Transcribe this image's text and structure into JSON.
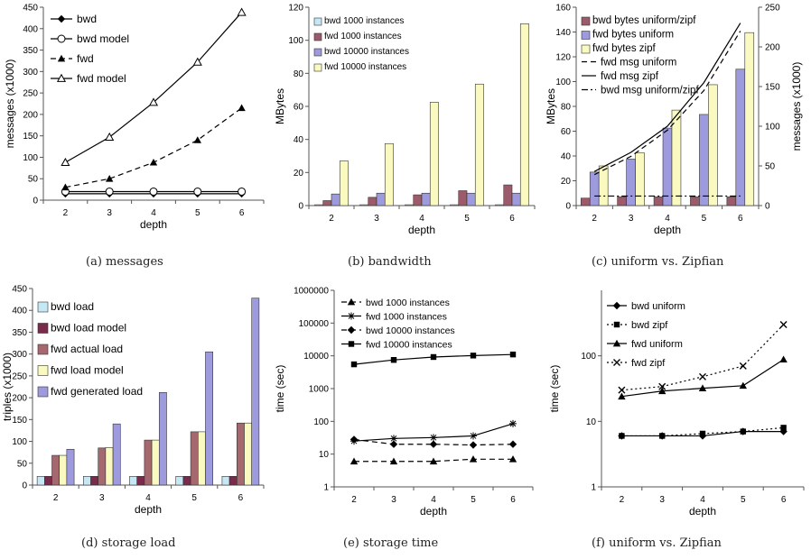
{
  "chart_data": [
    {
      "id": "a",
      "type": "line",
      "caption": "(a)  messages",
      "xlabel": "depth",
      "ylabel": "messages (x1000)",
      "x": [
        2,
        3,
        4,
        5,
        6
      ],
      "ylim": [
        0,
        450
      ],
      "yticks": [
        0,
        50,
        100,
        150,
        200,
        250,
        300,
        350,
        400,
        450
      ],
      "legend_position": "top-left",
      "series": [
        {
          "name": "bwd",
          "values": [
            15,
            15,
            15,
            15,
            15
          ],
          "marker": "diamond",
          "dash": "solid"
        },
        {
          "name": "bwd model",
          "values": [
            20,
            20,
            20,
            20,
            20
          ],
          "marker": "circle-open",
          "dash": "solid"
        },
        {
          "name": "fwd",
          "values": [
            30,
            50,
            88,
            140,
            215
          ],
          "marker": "triangle",
          "dash": "dashed"
        },
        {
          "name": "fwd model",
          "values": [
            88,
            147,
            228,
            322,
            438
          ],
          "marker": "triangle-open",
          "dash": "solid"
        }
      ]
    },
    {
      "id": "b",
      "type": "bar",
      "caption": "(b)  bandwidth",
      "xlabel": "depth",
      "ylabel": "MBytes",
      "categories": [
        "2",
        "3",
        "4",
        "5",
        "6"
      ],
      "ylim": [
        0,
        120
      ],
      "yticks": [
        0,
        20,
        40,
        60,
        80,
        100,
        120
      ],
      "legend_position": "top-left",
      "series": [
        {
          "name": "bwd 1000 instances",
          "values": [
            0.5,
            0.5,
            0.5,
            0.5,
            0.5
          ],
          "color": "#c6e8f5"
        },
        {
          "name": "fwd 1000 instances",
          "values": [
            3,
            5,
            6.5,
            9,
            12.5
          ],
          "color": "#9b5b6a"
        },
        {
          "name": "bwd 10000 instances",
          "values": [
            7,
            7.5,
            7.5,
            7.5,
            7.5
          ],
          "color": "#9d9ade"
        },
        {
          "name": "fwd 10000 instances",
          "values": [
            27,
            37.5,
            62.5,
            73.5,
            110
          ],
          "color": "#fafac0"
        }
      ]
    },
    {
      "id": "c",
      "type": "bar",
      "caption": "(c)  uniform vs. Zipfian",
      "xlabel": "depth",
      "ylabel": "MBytes",
      "y2label": "messages (x1000)",
      "categories": [
        "2",
        "3",
        "4",
        "5",
        "6"
      ],
      "ylim": [
        0,
        160
      ],
      "yticks": [
        0,
        20,
        40,
        60,
        80,
        100,
        120,
        140,
        160
      ],
      "y2lim": [
        0,
        250
      ],
      "y2ticks": [
        0,
        50,
        100,
        150,
        200,
        250
      ],
      "legend_position": "top-left",
      "series": [
        {
          "name": "bwd bytes uniform/zipf",
          "values": [
            6,
            7,
            7,
            7,
            7
          ],
          "color": "#9b5b6a"
        },
        {
          "name": "fwd bytes uniform",
          "values": [
            27,
            37.5,
            62.5,
            73.5,
            110
          ],
          "color": "#9d9ade"
        },
        {
          "name": "fwd bytes zipf",
          "values": [
            32,
            42.5,
            77,
            97.5,
            139.5
          ],
          "color": "#fafac0"
        }
      ],
      "lines": [
        {
          "name": "fwd msg uniform",
          "axis": "y2",
          "values": [
            39,
            62,
            95,
            145,
            220
          ],
          "dash": "dashed"
        },
        {
          "name": "fwd msg zipf",
          "axis": "y2",
          "values": [
            43,
            67,
            100,
            155,
            230
          ],
          "dash": "solid"
        },
        {
          "name": "bwd msg uniform/zipf",
          "axis": "y2",
          "values": [
            12,
            12,
            12,
            12,
            12
          ],
          "dash": "dashdot"
        }
      ]
    },
    {
      "id": "d",
      "type": "bar",
      "caption": "(d)  storage load",
      "xlabel": "depth",
      "ylabel": "triples (x1000)",
      "categories": [
        "2",
        "3",
        "4",
        "5",
        "6"
      ],
      "ylim": [
        0,
        450
      ],
      "yticks": [
        0,
        50,
        100,
        150,
        200,
        250,
        300,
        350,
        400,
        450
      ],
      "legend_position": "top-left",
      "series": [
        {
          "name": "bwd load",
          "values": [
            20,
            20,
            20,
            20,
            20
          ],
          "color": "#c6e8f5"
        },
        {
          "name": "bwd load model",
          "values": [
            20,
            20,
            20,
            20,
            20
          ],
          "color": "#7a2a4a"
        },
        {
          "name": "fwd actual load",
          "values": [
            68,
            85,
            103,
            122,
            142
          ],
          "color": "#a5686e"
        },
        {
          "name": "fwd load model",
          "values": [
            68,
            86,
            103,
            122,
            142
          ],
          "color": "#fafac0"
        },
        {
          "name": "fwd generated load",
          "values": [
            82,
            140,
            212,
            305,
            428
          ],
          "color": "#9d9ade"
        }
      ]
    },
    {
      "id": "e",
      "type": "line",
      "scale": "log",
      "caption": "(e)  storage time",
      "xlabel": "depth",
      "ylabel": "time (sec)",
      "x": [
        2,
        3,
        4,
        5,
        6
      ],
      "ylim": [
        1,
        1000000
      ],
      "yticks": [
        1,
        10,
        100,
        1000,
        10000,
        100000,
        1000000
      ],
      "ytick_labels": [
        "1",
        "10",
        "100",
        "1000",
        "10000",
        "100000",
        "1000000"
      ],
      "legend_position": "top-left",
      "series": [
        {
          "name": "bwd 1000 instances",
          "values": [
            6,
            6,
            6,
            7,
            7
          ],
          "marker": "triangle",
          "dash": "dashed"
        },
        {
          "name": "fwd 1000 instances",
          "values": [
            25,
            30,
            32,
            36,
            85
          ],
          "marker": "star",
          "dash": "solid"
        },
        {
          "name": "bwd 10000 instances",
          "values": [
            28,
            20,
            20,
            19,
            20
          ],
          "marker": "diamond",
          "dash": "dashed"
        },
        {
          "name": "fwd 10000 instances",
          "values": [
            5500,
            7500,
            9200,
            10200,
            11000
          ],
          "marker": "square",
          "dash": "solid"
        }
      ]
    },
    {
      "id": "f",
      "type": "line",
      "scale": "log",
      "caption": "(f)  uniform vs. Zipfian",
      "xlabel": "depth",
      "ylabel": "time (sec)",
      "x": [
        2,
        3,
        4,
        5,
        6
      ],
      "ylim": [
        1,
        1000
      ],
      "yticks": [
        1,
        10,
        100
      ],
      "ytick_labels": [
        "1",
        "10",
        "100"
      ],
      "legend_position": "top-left",
      "series": [
        {
          "name": "bwd uniform",
          "values": [
            6,
            6,
            6,
            7,
            7
          ],
          "marker": "diamond",
          "dash": "solid"
        },
        {
          "name": "bwd zipf",
          "values": [
            6,
            6,
            6.5,
            7,
            8
          ],
          "marker": "square",
          "dash": "dotted"
        },
        {
          "name": "fwd uniform",
          "values": [
            24,
            29,
            32,
            35,
            88
          ],
          "marker": "triangle",
          "dash": "solid"
        },
        {
          "name": "fwd zipf",
          "values": [
            30,
            34,
            48,
            70,
            300
          ],
          "marker": "x",
          "dash": "dotted"
        }
      ]
    }
  ]
}
